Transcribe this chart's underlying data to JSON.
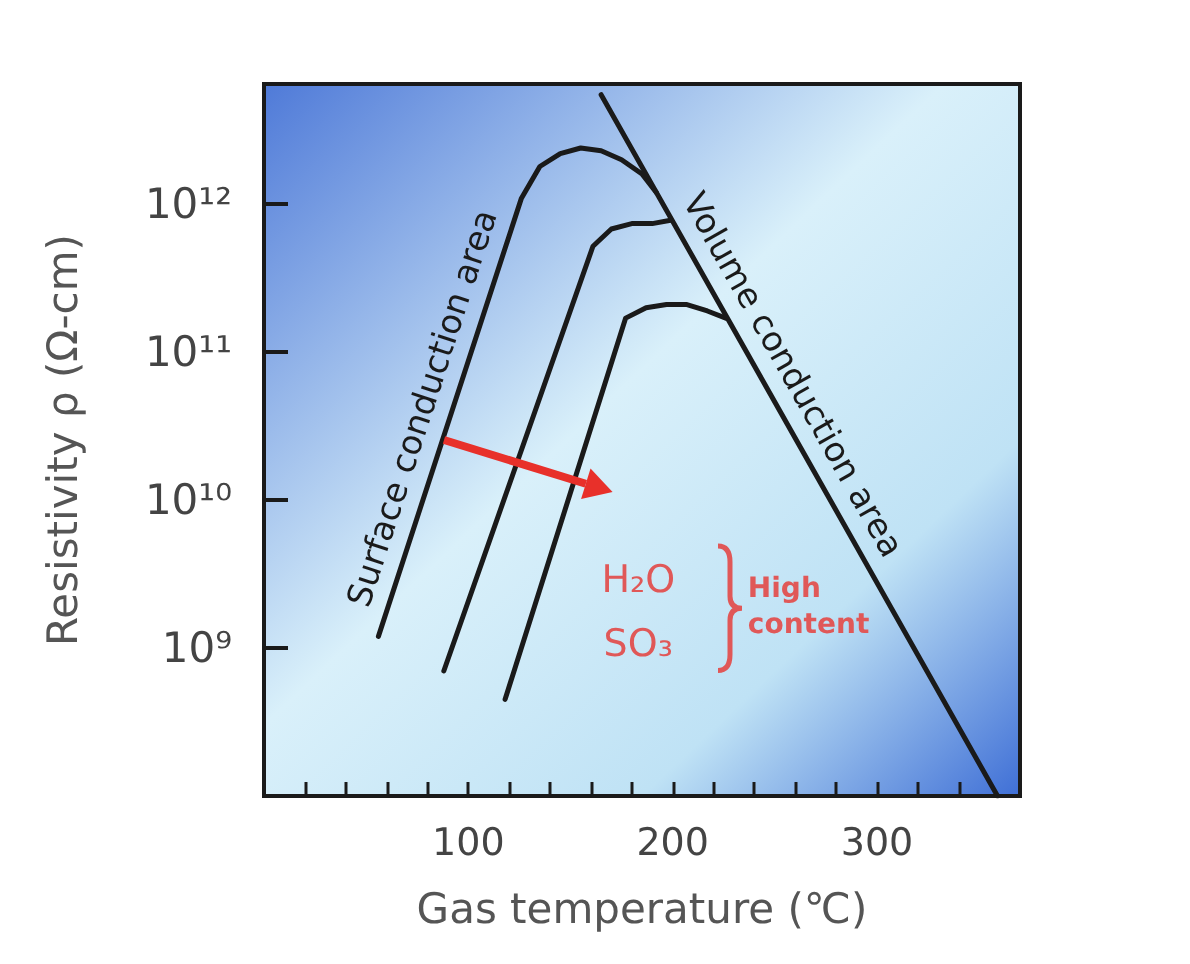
{
  "chart_data": {
    "type": "line",
    "xlabel": "Gas temperature (℃)",
    "ylabel": "Resistivity ρ (Ω-cm)",
    "xlim": [
      0,
      370
    ],
    "ylim": [
      100000000,
      6500000000000
    ],
    "xticks": [
      {
        "value": 20,
        "label": null
      },
      {
        "value": 40,
        "label": null
      },
      {
        "value": 60,
        "label": null
      },
      {
        "value": 80,
        "label": null
      },
      100,
      {
        "value": 120,
        "label": null
      },
      {
        "value": 140,
        "label": null
      },
      {
        "value": 160,
        "label": null
      },
      {
        "value": 180,
        "label": null
      },
      200,
      {
        "value": 220,
        "label": null
      },
      {
        "value": 240,
        "label": null
      },
      {
        "value": 260,
        "label": null
      },
      {
        "value": 280,
        "label": null
      },
      300,
      {
        "value": 320,
        "label": null
      },
      {
        "value": 340,
        "label": null
      }
    ],
    "yticks": [
      {
        "value": 1000000000,
        "label": "10⁹"
      },
      {
        "value": 10000000000,
        "label": "10¹⁰"
      },
      {
        "value": 100000000000,
        "label": "10¹¹"
      },
      {
        "value": 1000000000000,
        "label": "10¹²"
      }
    ],
    "log": "y",
    "grid": false,
    "marker": "none",
    "line_style": "solid",
    "series": [
      {
        "color": "#1a1a1a",
        "x": [
          56,
          126,
          135,
          145,
          155,
          165,
          175,
          185,
          192
        ],
        "values": [
          1200000000,
          1100000000000,
          1800000000000,
          2200000000000,
          2400000000000,
          2300000000000,
          2000000000000,
          1600000000000,
          1200000000000
        ]
      },
      {
        "color": "#1a1a1a",
        "x": [
          88,
          161,
          170,
          180,
          190,
          199
        ],
        "values": [
          700000000,
          520000000000,
          680000000000,
          740000000000,
          740000000000,
          780000000000
        ]
      },
      {
        "color": "#1a1a1a",
        "x": [
          118,
          177,
          187,
          197,
          207,
          217,
          226
        ],
        "values": [
          450000000,
          170000000000,
          200000000000,
          210000000000,
          210000000000,
          190000000000,
          170000000000
        ]
      },
      {
        "color": "#1a1a1a",
        "x": [
          165,
          359
        ],
        "values": [
          5500000000000,
          100000000
        ]
      }
    ],
    "annotations": [
      "Surface conduction area",
      "Volume conduction area",
      "H₂O",
      "SO₃",
      "High content"
    ]
  }
}
